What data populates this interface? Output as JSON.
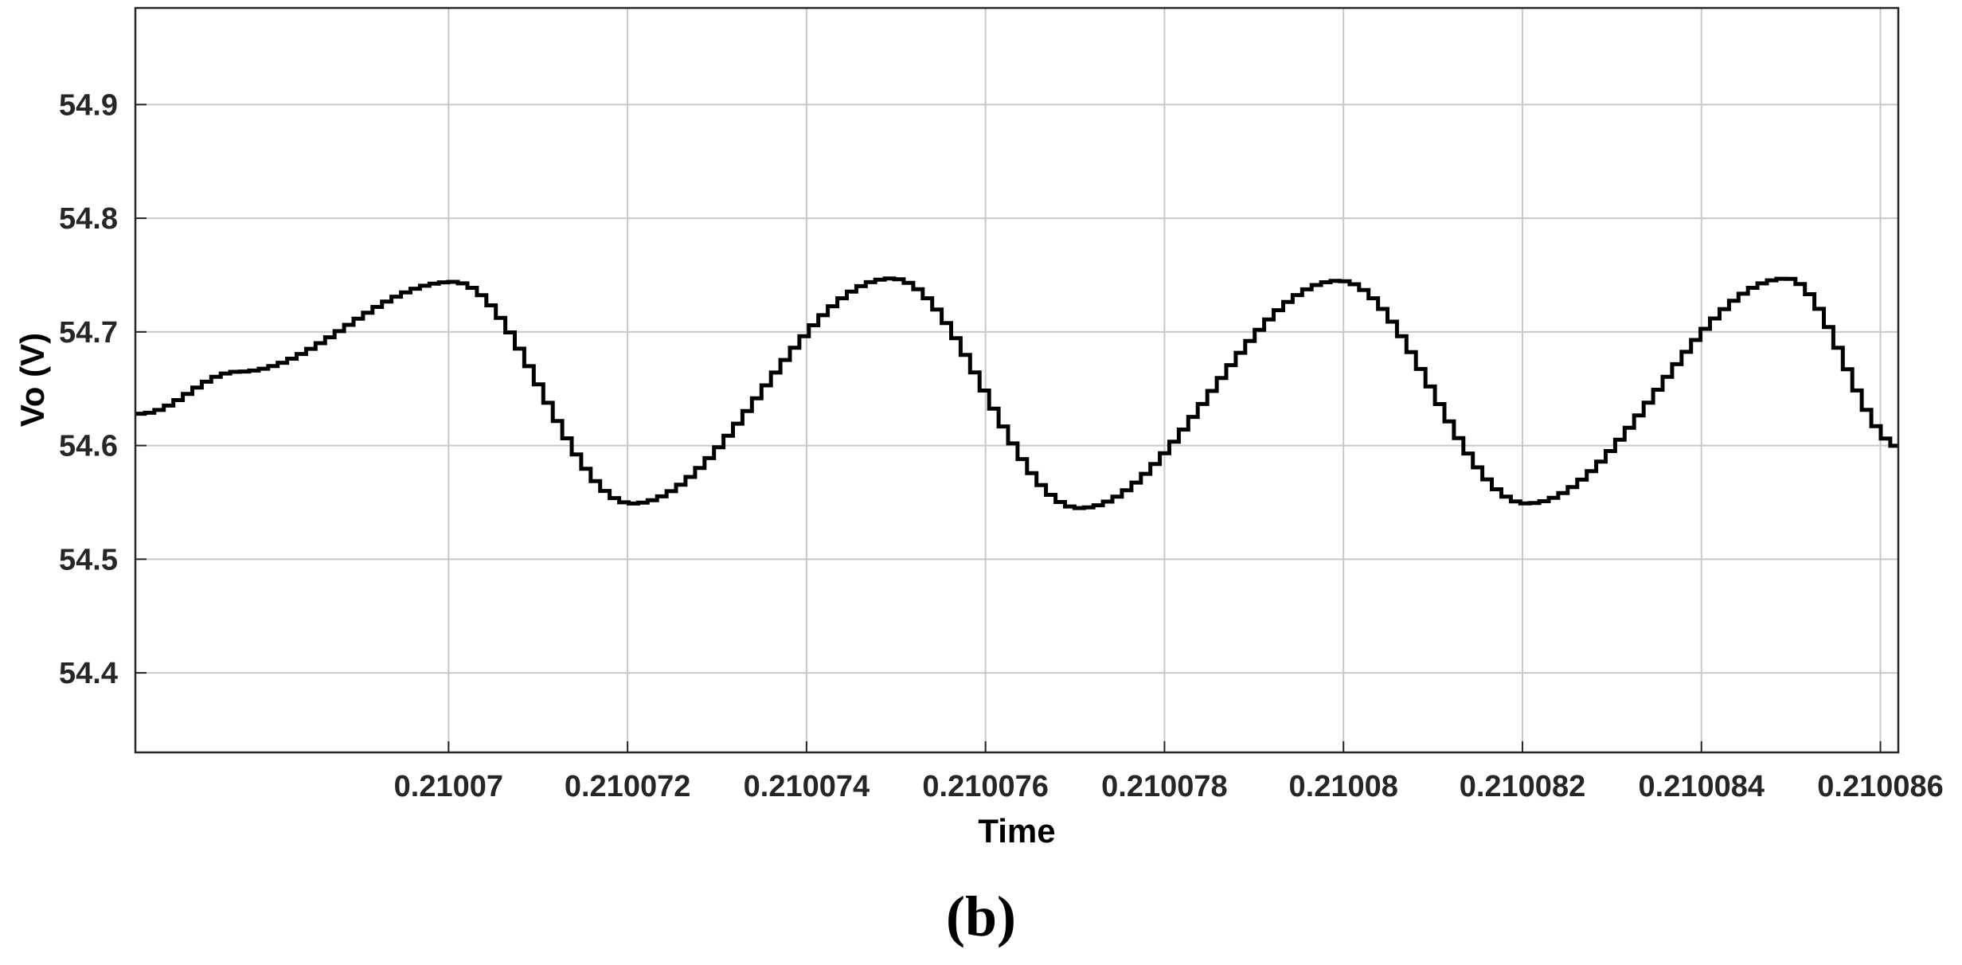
{
  "chart_data": {
    "type": "line",
    "xlabel": "Time",
    "ylabel": "Vo (V)",
    "panel_label": "(b)",
    "xlim": [
      0.2100665,
      0.2100862
    ],
    "ylim": [
      54.33,
      54.985
    ],
    "x_ticks": [
      0.21007,
      0.210072,
      0.210074,
      0.210076,
      0.210078,
      0.21008,
      0.210082,
      0.210084,
      0.210086
    ],
    "x_tick_labels": [
      "0.21007",
      "0.210072",
      "0.210074",
      "0.210076",
      "0.210078",
      "0.21008",
      "0.210082",
      "0.210084",
      "0.210086"
    ],
    "y_ticks": [
      54.4,
      54.5,
      54.6,
      54.7,
      54.8,
      54.9
    ],
    "y_tick_labels": [
      "54.4",
      "54.5",
      "54.6",
      "54.7",
      "54.8",
      "54.9"
    ],
    "grid": true,
    "line_style": "step",
    "series_color": "#000000",
    "series": [
      {
        "x": [
          0.2100665,
          0.2100676,
          0.21007,
          0.210072,
          0.2100749,
          0.210077,
          0.2100799,
          0.210082,
          0.2100849,
          0.2100862
        ],
        "y": [
          54.628,
          54.665,
          54.744,
          54.549,
          54.747,
          54.545,
          54.745,
          54.549,
          54.747,
          54.598
        ]
      }
    ]
  }
}
